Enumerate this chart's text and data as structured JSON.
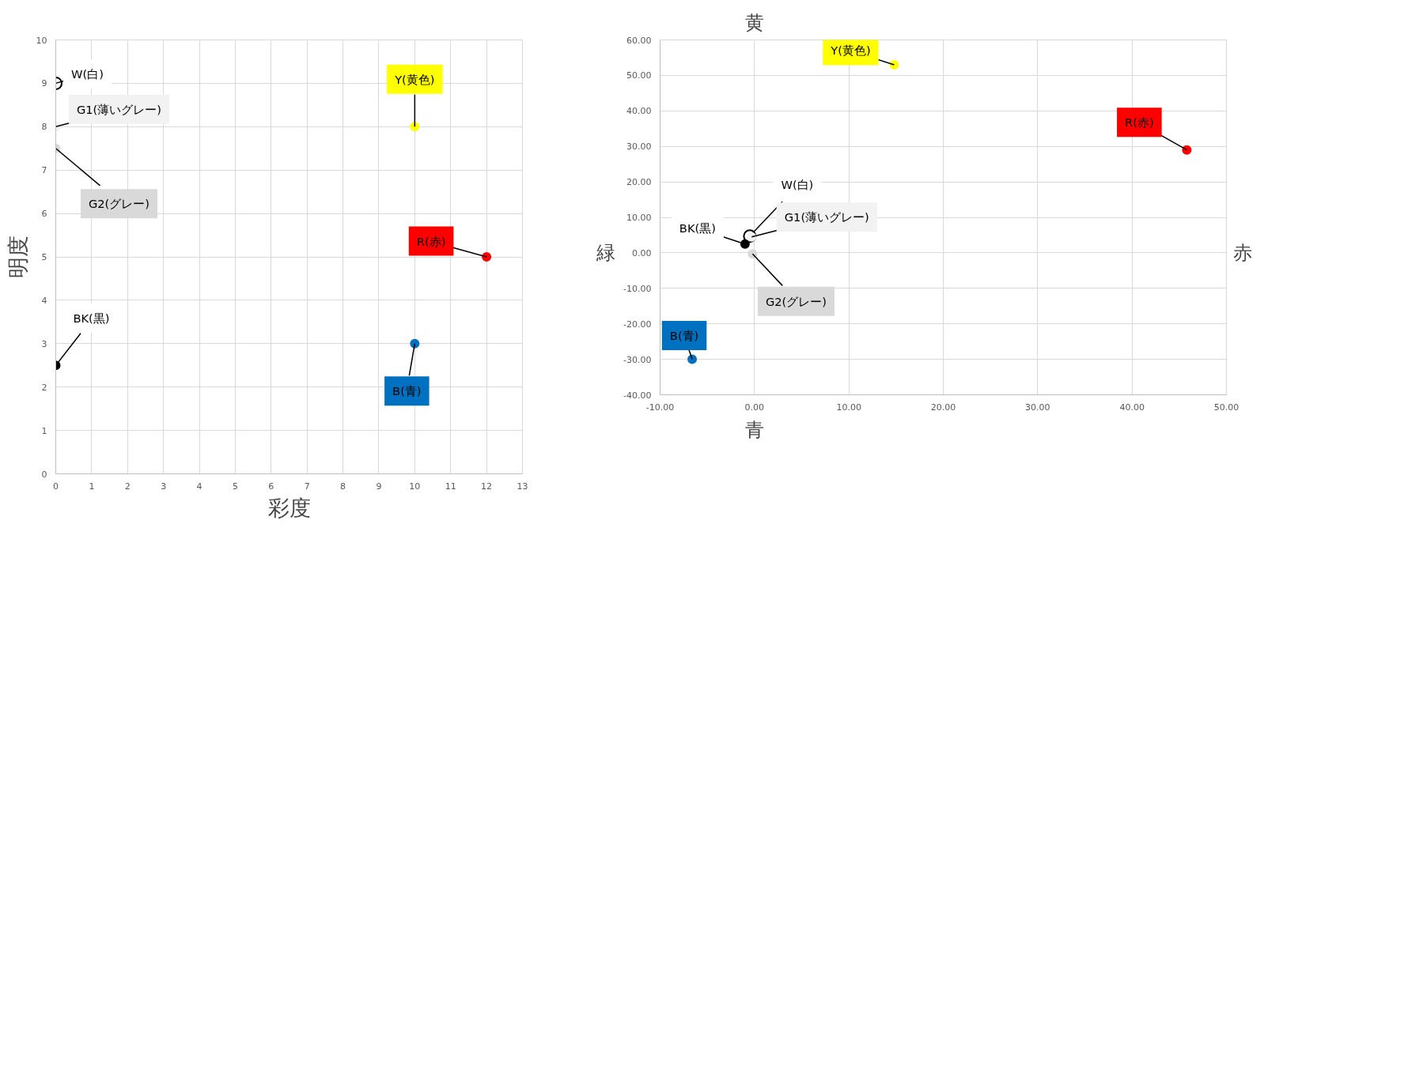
{
  "chart_data": [
    {
      "type": "scatter",
      "xlabel": "彩度",
      "ylabel": "明度",
      "xlim": [
        0,
        13
      ],
      "ylim": [
        0,
        10
      ],
      "xticks": [
        0,
        1,
        2,
        3,
        4,
        5,
        6,
        7,
        8,
        9,
        10,
        11,
        12,
        13
      ],
      "yticks": [
        0,
        1,
        2,
        3,
        4,
        5,
        6,
        7,
        8,
        9,
        10
      ],
      "grid": true,
      "legend": false,
      "marker": "circle",
      "series": [
        {
          "name": "W(白)",
          "color": "#ffffff",
          "x": [
            0
          ],
          "values": [
            9
          ]
        },
        {
          "name": "G1(薄いグレー)",
          "color": "#f2f2f2",
          "x": [
            0
          ],
          "values": [
            8
          ]
        },
        {
          "name": "G2(グレー)",
          "color": "#d9d9d9",
          "x": [
            0
          ],
          "values": [
            7.5
          ]
        },
        {
          "name": "Y(黄色)",
          "color": "#ffff00",
          "x": [
            10
          ],
          "values": [
            8
          ]
        },
        {
          "name": "R(赤)",
          "color": "#ff0000",
          "x": [
            12
          ],
          "values": [
            5
          ]
        },
        {
          "name": "BK(黒)",
          "color": "#000000",
          "x": [
            0
          ],
          "values": [
            2.5
          ]
        },
        {
          "name": "B(青)",
          "color": "#0070c0",
          "x": [
            10
          ],
          "values": [
            3
          ]
        }
      ]
    },
    {
      "type": "scatter",
      "xlim": [
        -10,
        50
      ],
      "ylim": [
        -40,
        60
      ],
      "xticks": [
        {
          "value": -10,
          "label": "-10.00"
        },
        {
          "value": 0,
          "label": "0.00"
        },
        {
          "value": 10,
          "label": "10.00"
        },
        {
          "value": 20,
          "label": "20.00"
        },
        {
          "value": 30,
          "label": "30.00"
        },
        {
          "value": 40,
          "label": "40.00"
        },
        {
          "value": 50,
          "label": "50.00"
        }
      ],
      "yticks": [
        {
          "value": -40,
          "label": "-40.00"
        },
        {
          "value": -30,
          "label": "-30.00"
        },
        {
          "value": -20,
          "label": "-20.00"
        },
        {
          "value": -10,
          "label": "-10.00"
        },
        {
          "value": 0,
          "label": "0.00"
        },
        {
          "value": 10,
          "label": "10.00"
        },
        {
          "value": 20,
          "label": "20.00"
        },
        {
          "value": 30,
          "label": "30.00"
        },
        {
          "value": 40,
          "label": "40.00"
        },
        {
          "value": 50,
          "label": "50.00"
        },
        {
          "value": 60,
          "label": "60.00"
        }
      ],
      "grid": true,
      "legend": false,
      "marker": "circle",
      "annotations": [
        "黄",
        "青",
        "緑",
        "赤"
      ],
      "series": [
        {
          "name": "W(白)",
          "color": "#ffffff",
          "x": [
            -0.5
          ],
          "values": [
            4.7
          ]
        },
        {
          "name": "G1(薄いグレー)",
          "color": "#f2f2f2",
          "x": [
            -0.3
          ],
          "values": [
            4.5
          ]
        },
        {
          "name": "BK(黒)",
          "color": "#000000",
          "x": [
            -1
          ],
          "values": [
            2.5
          ]
        },
        {
          "name": "G2(グレー)",
          "color": "#d9d9d9",
          "x": [
            -0.2
          ],
          "values": [
            -0.3
          ]
        },
        {
          "name": "Y(黄色)",
          "color": "#ffff00",
          "x": [
            14.8
          ],
          "values": [
            53
          ]
        },
        {
          "name": "R(赤)",
          "color": "#ff0000",
          "x": [
            45.8
          ],
          "values": [
            29
          ]
        },
        {
          "name": "B(青)",
          "color": "#0070c0",
          "x": [
            -6.6
          ],
          "values": [
            -30
          ]
        }
      ]
    }
  ]
}
